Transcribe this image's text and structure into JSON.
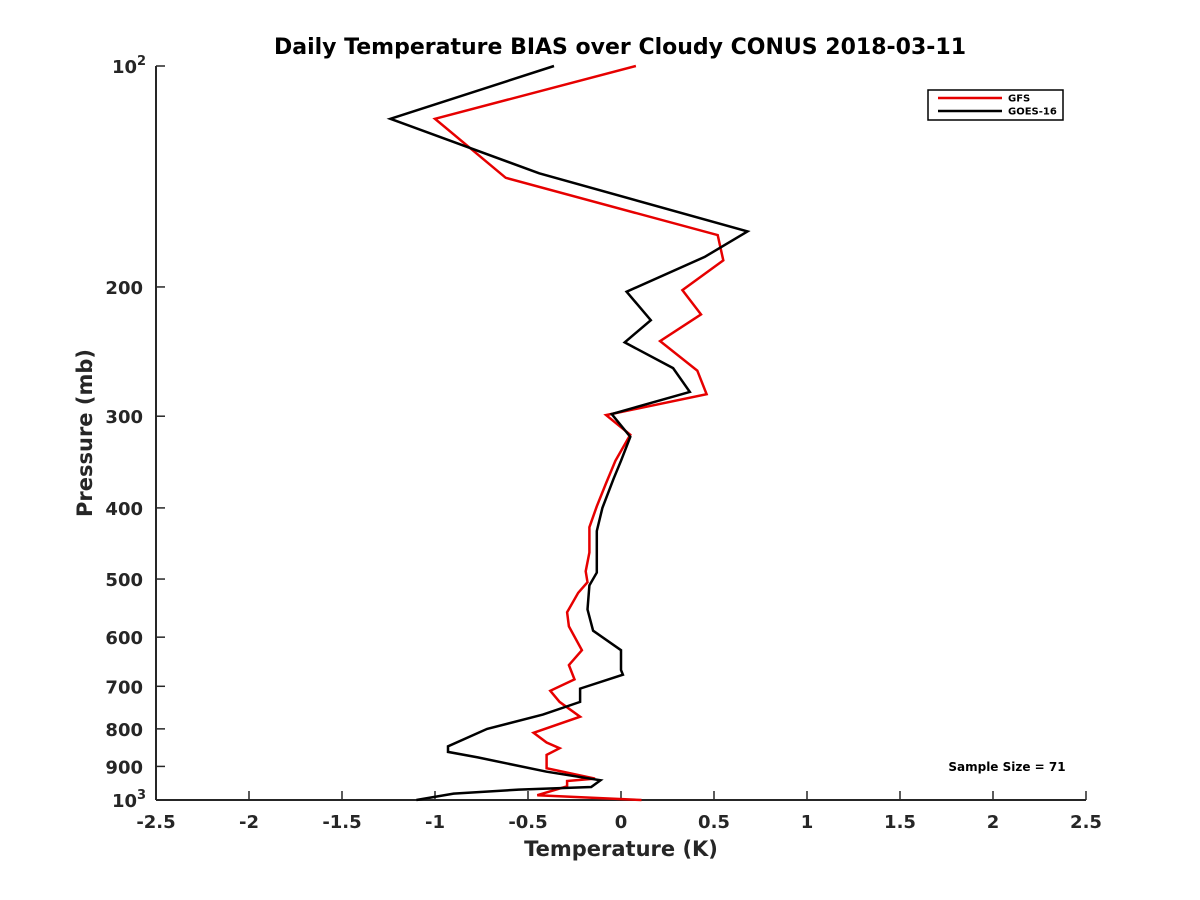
{
  "chart_data": {
    "type": "line",
    "title": "Daily Temperature BIAS over Cloudy CONUS 2018-03-11",
    "xlabel": "Temperature (K)",
    "ylabel": "Pressure (mb)",
    "xlim": [
      -2.5,
      2.5
    ],
    "ylim": [
      100,
      1000
    ],
    "y_scale": "log",
    "y_reversed": true,
    "x_ticks": [
      "-2.5",
      "-2",
      "-1.5",
      "-1",
      "-0.5",
      "0",
      "0.5",
      "1",
      "1.5",
      "2",
      "2.5"
    ],
    "x_tick_values": [
      -2.5,
      -2,
      -1.5,
      -1,
      -0.5,
      0,
      0.5,
      1,
      1.5,
      2,
      2.5
    ],
    "y_ticks": [
      {
        "value": 100,
        "base": "10",
        "exp": "2"
      },
      {
        "value": 200,
        "label": "200"
      },
      {
        "value": 300,
        "label": "300"
      },
      {
        "value": 400,
        "label": "400"
      },
      {
        "value": 500,
        "label": "500"
      },
      {
        "value": 600,
        "label": "600"
      },
      {
        "value": 700,
        "label": "700"
      },
      {
        "value": 800,
        "label": "800"
      },
      {
        "value": 900,
        "label": "900"
      },
      {
        "value": 1000,
        "base": "10",
        "exp": "3"
      }
    ],
    "grid": false,
    "legend_position": "top-right",
    "annotation": "Sample Size = 71",
    "series": [
      {
        "name": "GFS",
        "color": "#e60000",
        "points": [
          [
            0.08,
            100
          ],
          [
            -1.0,
            118
          ],
          [
            -0.62,
            142
          ],
          [
            0.52,
            170
          ],
          [
            0.55,
            184
          ],
          [
            0.33,
            202
          ],
          [
            0.43,
            218
          ],
          [
            0.21,
            237
          ],
          [
            0.41,
            260
          ],
          [
            0.46,
            280
          ],
          [
            -0.08,
            299
          ],
          [
            0.05,
            318
          ],
          [
            -0.03,
            345
          ],
          [
            -0.08,
            370
          ],
          [
            -0.13,
            398
          ],
          [
            -0.17,
            425
          ],
          [
            -0.17,
            460
          ],
          [
            -0.19,
            488
          ],
          [
            -0.18,
            505
          ],
          [
            -0.23,
            522
          ],
          [
            -0.29,
            555
          ],
          [
            -0.28,
            580
          ],
          [
            -0.21,
            625
          ],
          [
            -0.28,
            655
          ],
          [
            -0.25,
            685
          ],
          [
            -0.38,
            710
          ],
          [
            -0.33,
            735
          ],
          [
            -0.22,
            770
          ],
          [
            -0.47,
            810
          ],
          [
            -0.4,
            835
          ],
          [
            -0.33,
            850
          ],
          [
            -0.4,
            868
          ],
          [
            -0.4,
            905
          ],
          [
            -0.14,
            935
          ],
          [
            -0.29,
            942
          ],
          [
            -0.29,
            958
          ],
          [
            -0.45,
            985
          ],
          [
            0.11,
            1000
          ]
        ]
      },
      {
        "name": "GOES-16",
        "color": "#000000",
        "points": [
          [
            -0.36,
            100
          ],
          [
            -1.24,
            118
          ],
          [
            -0.44,
            140
          ],
          [
            0.68,
            168
          ],
          [
            0.45,
            182
          ],
          [
            0.03,
            203
          ],
          [
            0.16,
            222
          ],
          [
            0.02,
            238
          ],
          [
            0.28,
            258
          ],
          [
            0.37,
            278
          ],
          [
            -0.05,
            298
          ],
          [
            0.05,
            320
          ],
          [
            0.0,
            345
          ],
          [
            -0.04,
            365
          ],
          [
            -0.1,
            400
          ],
          [
            -0.13,
            430
          ],
          [
            -0.13,
            475
          ],
          [
            -0.13,
            490
          ],
          [
            -0.17,
            510
          ],
          [
            -0.18,
            550
          ],
          [
            -0.15,
            588
          ],
          [
            0.0,
            625
          ],
          [
            0.0,
            665
          ],
          [
            0.01,
            675
          ],
          [
            -0.22,
            705
          ],
          [
            -0.22,
            735
          ],
          [
            -0.42,
            765
          ],
          [
            -0.72,
            800
          ],
          [
            -0.93,
            845
          ],
          [
            -0.93,
            860
          ],
          [
            -0.77,
            875
          ],
          [
            -0.4,
            915
          ],
          [
            -0.11,
            940
          ],
          [
            -0.16,
            960
          ],
          [
            -0.55,
            968
          ],
          [
            -0.9,
            980
          ],
          [
            -1.1,
            1000
          ]
        ]
      }
    ]
  }
}
